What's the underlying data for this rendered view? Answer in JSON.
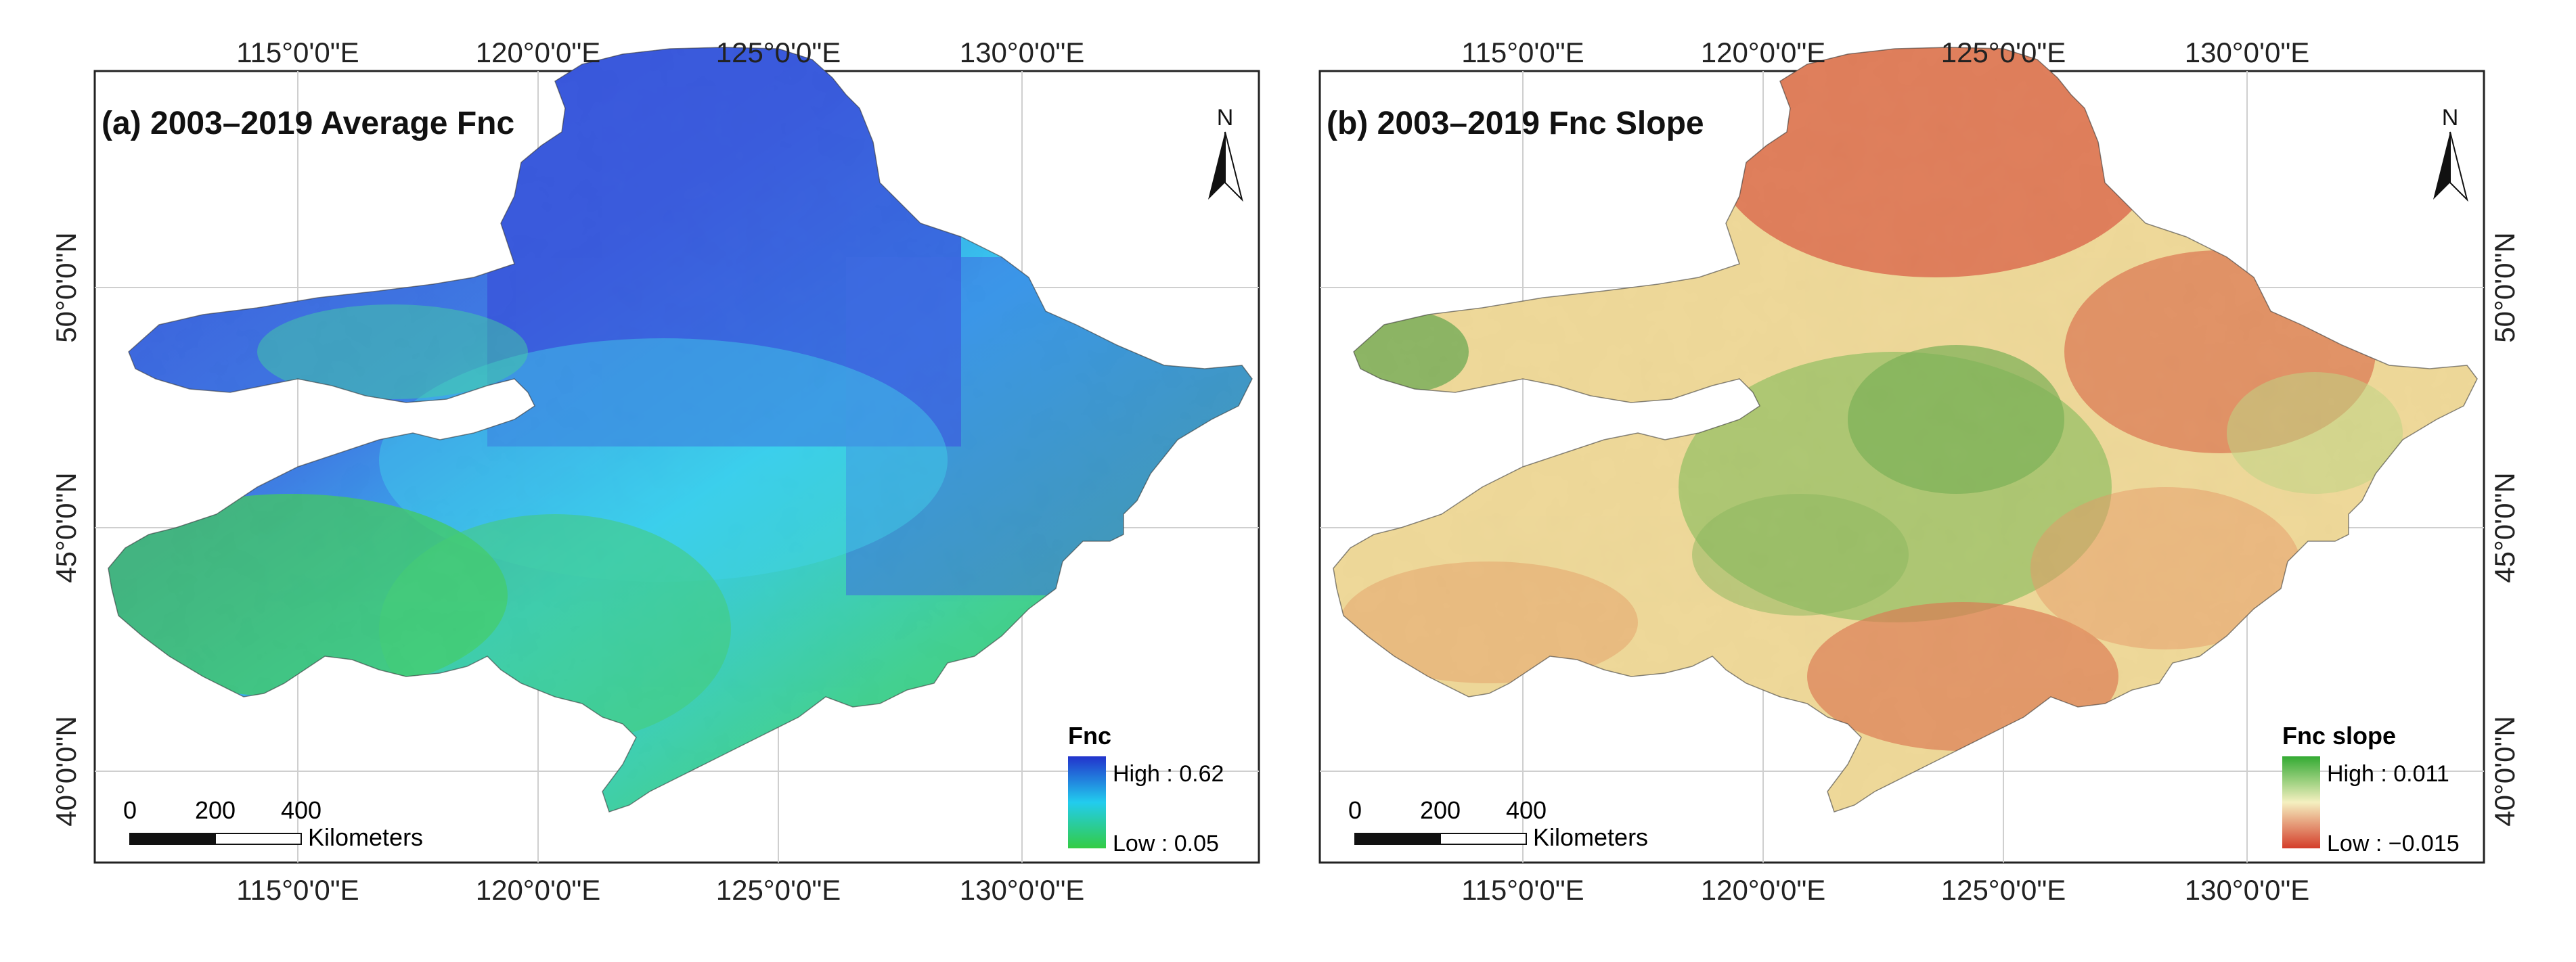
{
  "panels": [
    {
      "id": "a",
      "title": "(a) 2003–2019 Average Fnc",
      "north": "N",
      "lon_ticks": [
        "115°0'0\"E",
        "120°0'0\"E",
        "125°0'0\"E",
        "130°0'0\"E"
      ],
      "lat_ticks": [
        "50°0'0\"N",
        "45°0'0\"N",
        "40°0'0\"N"
      ],
      "scale": {
        "ticks": [
          "0",
          "200",
          "400"
        ],
        "unit": "Kilometers"
      },
      "legend": {
        "title": "Fnc",
        "high": "High : 0.62",
        "low": "Low : 0.05",
        "color_high": "#2233cc",
        "color_mid": "#22ccee",
        "color_low": "#33cc44"
      }
    },
    {
      "id": "b",
      "title": "(b) 2003–2019 Fnc Slope",
      "north": "N",
      "lon_ticks": [
        "115°0'0\"E",
        "120°0'0\"E",
        "125°0'0\"E",
        "130°0'0\"E"
      ],
      "lat_ticks": [
        "50°0'0\"N",
        "45°0'0\"N",
        "40°0'0\"N"
      ],
      "scale": {
        "ticks": [
          "0",
          "200",
          "400"
        ],
        "unit": "Kilometers"
      },
      "legend": {
        "title": "Fnc slope",
        "high": "High : 0.011",
        "low": "Low : −0.015",
        "color_high": "#33aa33",
        "color_mid": "#f5f0c0",
        "color_low": "#d43d2a"
      }
    }
  ]
}
